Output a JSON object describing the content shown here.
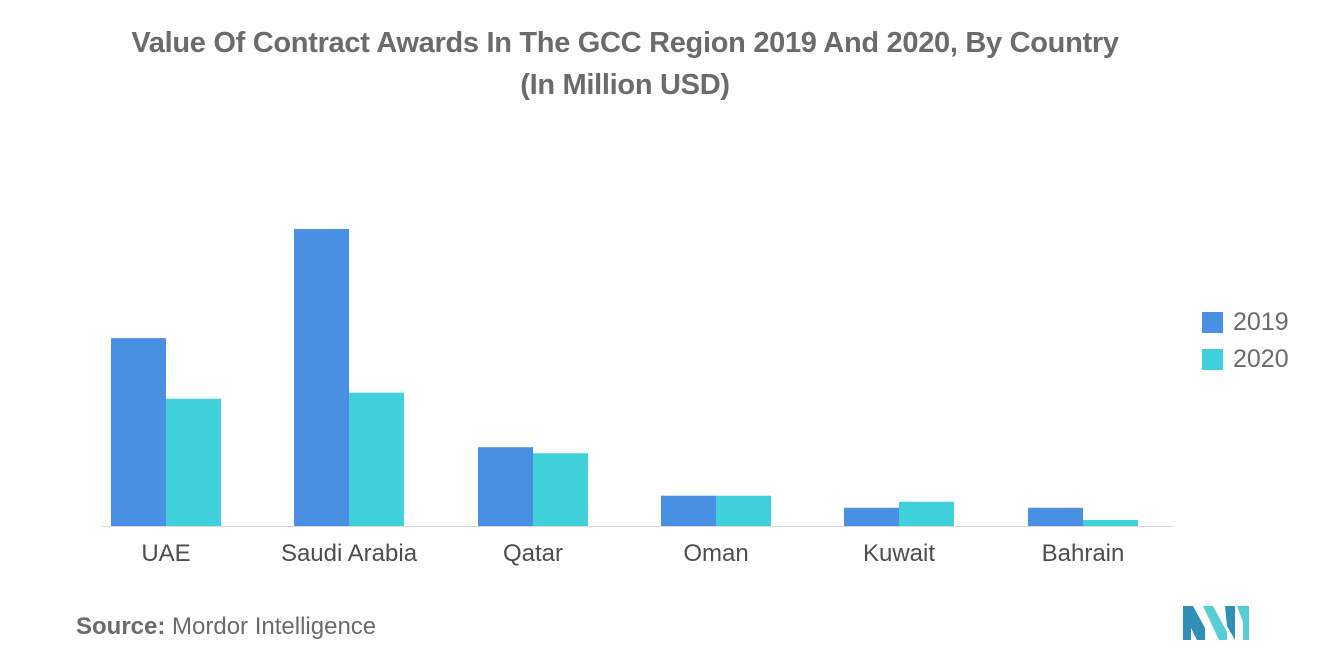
{
  "chart_data": {
    "type": "bar",
    "title_line1": "Value Of Contract Awards In The GCC Region 2019 And 2020, By Country",
    "title_line2": "(In Million USD)",
    "categories": [
      "UAE",
      "Saudi Arabia",
      "Qatar",
      "Oman",
      "Kuwait",
      "Bahrain"
    ],
    "series": [
      {
        "name": "2019",
        "color": "#4a90e2",
        "values": [
          31,
          49,
          13,
          5,
          3,
          3
        ]
      },
      {
        "name": "2020",
        "color": "#40d0da",
        "values": [
          21,
          22,
          12,
          5,
          4,
          1
        ]
      }
    ],
    "ylim": [
      0,
      49
    ],
    "grid": false,
    "legend_position": "right"
  },
  "source": {
    "prefix": "Source:",
    "text": " Mordor Intelligence"
  },
  "logo": {
    "icon": "mordor-intelligence-logo",
    "colors": [
      "#2f8fb7",
      "#57cdd6"
    ]
  }
}
